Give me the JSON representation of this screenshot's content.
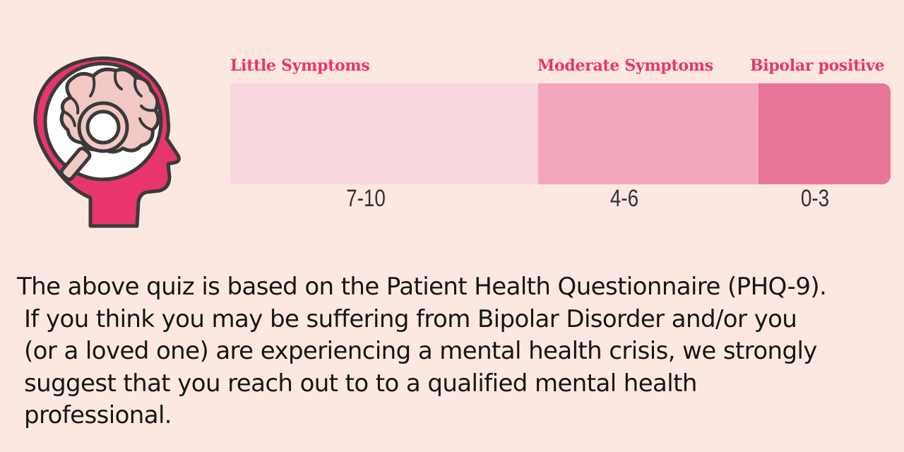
{
  "scale": {
    "segments": [
      {
        "label": "Little Symptoms",
        "range": "7-10",
        "color": "#f8d7de"
      },
      {
        "label": "Moderate  Symptoms",
        "range": "4-6",
        "color": "#f4a6bd"
      },
      {
        "label": "Bipolar positive",
        "range": "0-3",
        "color": "#e87597"
      }
    ]
  },
  "disclaimer": {
    "lines": [
      "The above quiz is based on the Patient Health Questionnaire (PHQ-9).",
      "If you think you may be suffering from Bipolar Disorder and/or you",
      "(or a loved one) are experiencing a mental health crisis, we strongly",
      "suggest that you reach out to to a qualified mental health",
      "professional."
    ]
  },
  "colors": {
    "background": "#fde8e1",
    "accent": "#e8356b",
    "icon_pink": "#e8356b",
    "brain_fill": "#f2c8c4",
    "outline": "#3a3a3a"
  },
  "icons": {
    "head": "head-with-brain-magnifier-icon"
  }
}
